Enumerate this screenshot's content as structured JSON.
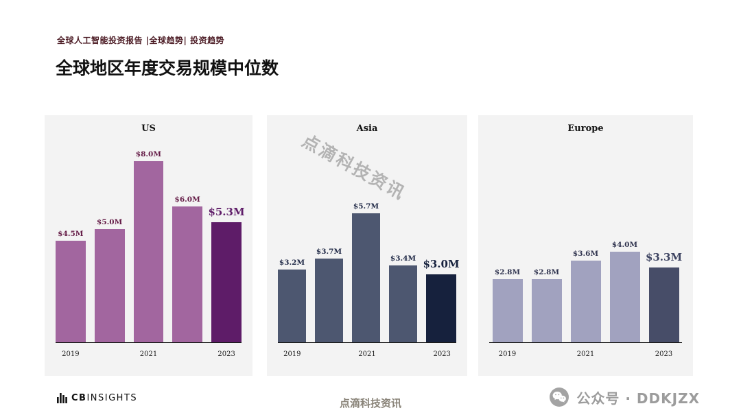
{
  "header": {
    "breadcrumb": "全球人工智能投资报告 |全球趋势| 投资趋势",
    "title": "全球地区年度交易规模中位数"
  },
  "watermark": "点滴科技资讯",
  "footer": {
    "logo_bold": "CB",
    "logo_rest": "INSIGHTS",
    "center_text": "点滴科技资讯",
    "right_text": "公众号 · DDKJZX"
  },
  "chart_data": [
    {
      "type": "bar",
      "title": "US",
      "categories": [
        "2019",
        "2020",
        "2021",
        "2022",
        "2023"
      ],
      "values": [
        4.5,
        5.0,
        8.0,
        6.0,
        5.3
      ],
      "value_labels": [
        "$4.5M",
        "$5.0M",
        "$8.0M",
        "$6.0M",
        "$5.3M"
      ],
      "x_tick_labels": [
        "2019",
        "",
        "2021",
        "",
        "2023"
      ],
      "ylim": [
        0,
        8.5
      ],
      "grid": false,
      "colors": {
        "bar": "#a2669f",
        "final_bar": "#5e1c68",
        "value_label": "#641b46",
        "final_value_label": "#5e1c68"
      }
    },
    {
      "type": "bar",
      "title": "Asia",
      "categories": [
        "2019",
        "2020",
        "2021",
        "2022",
        "2023"
      ],
      "values": [
        3.2,
        3.7,
        5.7,
        3.4,
        3.0
      ],
      "value_labels": [
        "$3.2M",
        "$3.7M",
        "$5.7M",
        "$3.4M",
        "$3.0M"
      ],
      "x_tick_labels": [
        "2019",
        "",
        "2021",
        "",
        "2023"
      ],
      "ylim": [
        0,
        8.5
      ],
      "grid": false,
      "colors": {
        "bar": "#4d5770",
        "final_bar": "#16213d",
        "value_label": "#222b48",
        "final_value_label": "#16213d"
      }
    },
    {
      "type": "bar",
      "title": "Europe",
      "categories": [
        "2019",
        "2020",
        "2021",
        "2022",
        "2023"
      ],
      "values": [
        2.8,
        2.8,
        3.6,
        4.0,
        3.3
      ],
      "value_labels": [
        "$2.8M",
        "$2.8M",
        "$3.6M",
        "$4.0M",
        "$3.3M"
      ],
      "x_tick_labels": [
        "2019",
        "",
        "2021",
        "",
        "2023"
      ],
      "ylim": [
        0,
        8.5
      ],
      "grid": false,
      "colors": {
        "bar": "#a1a2bf",
        "final_bar": "#474d68",
        "value_label": "#30344f",
        "final_value_label": "#3c4260"
      }
    }
  ]
}
